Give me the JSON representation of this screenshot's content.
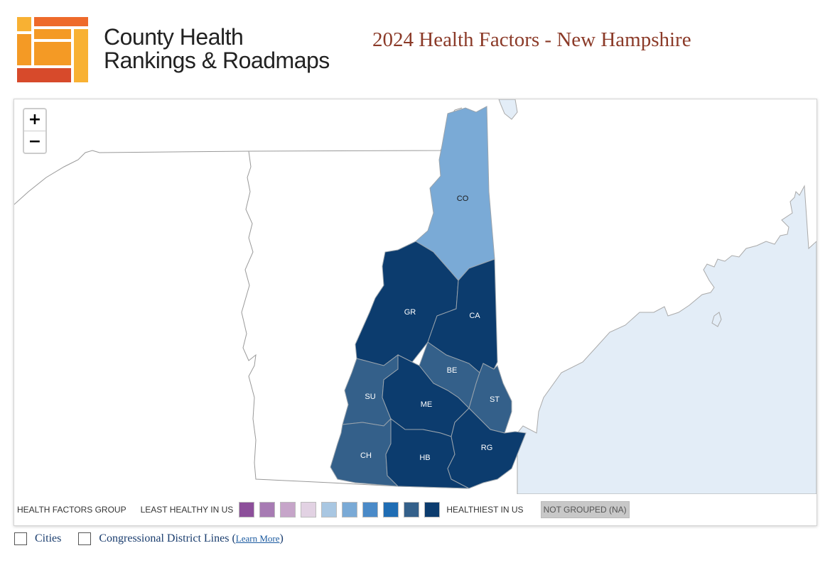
{
  "header": {
    "brand_line1": "County Health",
    "brand_line2": "Rankings & Roadmaps",
    "title": "2024 Health Factors - New Hampshire"
  },
  "map": {
    "zoom_in": "+",
    "zoom_out": "−",
    "counties": [
      {
        "code": "CO",
        "group": 5
      },
      {
        "code": "GR",
        "group": 9
      },
      {
        "code": "CA",
        "group": 9
      },
      {
        "code": "BE",
        "group": 8
      },
      {
        "code": "SU",
        "group": 8
      },
      {
        "code": "ME",
        "group": 9
      },
      {
        "code": "ST",
        "group": 8
      },
      {
        "code": "CH",
        "group": 8
      },
      {
        "code": "HB",
        "group": 9
      },
      {
        "code": "RG",
        "group": 9
      }
    ]
  },
  "legend": {
    "title": "HEALTH FACTORS GROUP",
    "least": "LEAST HEALTHY IN US",
    "healthiest": "HEALTHIEST IN US",
    "not_grouped": "NOT GROUPED (NA)",
    "colors": [
      "#8c4f9a",
      "#a77bb3",
      "#c6a5c9",
      "#e2d2e3",
      "#a9c7e2",
      "#7aaad6",
      "#4a8ac8",
      "#1f6db4",
      "#34608a",
      "#0c3c6e"
    ]
  },
  "options": {
    "cities": "Cities",
    "districts": "Congressional District Lines",
    "learn_more": "Learn More"
  }
}
